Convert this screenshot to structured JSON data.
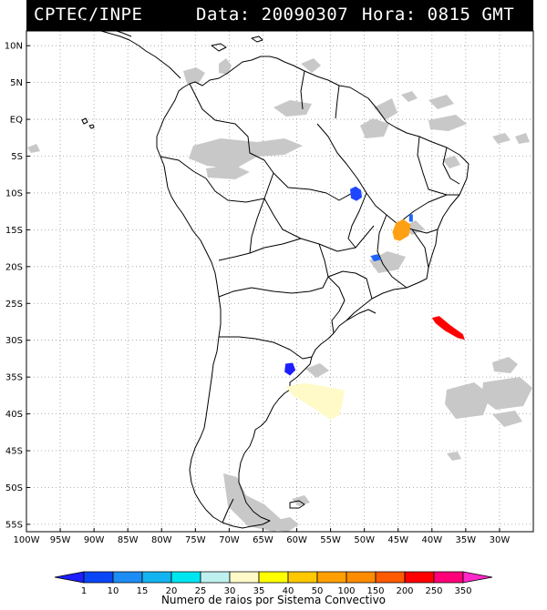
{
  "header": {
    "source": "CPTEC/INPE",
    "date": "Data: 20090307",
    "hour": "Hora: 0815 GMT"
  },
  "map": {
    "lon_range": [
      -100,
      -25
    ],
    "lat_range": [
      -56,
      12
    ],
    "lat_labels": [
      "10N",
      "5N",
      "EQ",
      "5S",
      "10S",
      "15S",
      "20S",
      "25S",
      "30S",
      "35S",
      "40S",
      "45S",
      "50S",
      "55S"
    ],
    "lon_labels": [
      "100W",
      "95W",
      "90W",
      "85W",
      "80W",
      "75W",
      "70W",
      "65W",
      "60W",
      "55W",
      "50W",
      "45W",
      "40W",
      "35W",
      "30W"
    ]
  },
  "legend": {
    "values": [
      "1",
      "10",
      "15",
      "20",
      "25",
      "30",
      "35",
      "40",
      "50",
      "100",
      "150",
      "200",
      "250",
      "350"
    ],
    "colors": [
      "#1e1eff",
      "#0a46f5",
      "#1e8cf5",
      "#14b4f0",
      "#00e6f0",
      "#bef0f0",
      "#fffac8",
      "#ffff00",
      "#ffc800",
      "#ffa000",
      "#ff8c00",
      "#ff5a00",
      "#ff0000",
      "#ff0078",
      "#ff28c8"
    ],
    "caption": "Numero de raios por Sistema Convectivo"
  },
  "systems": [
    {
      "name": "system-central-brazil",
      "lon": -51.3,
      "lat": -10.1,
      "category": "1-10",
      "color": "#1e46ff"
    },
    {
      "name": "system-bahia-small",
      "lon": -43.1,
      "lat": -13.4,
      "category": "10-15",
      "color": "#1e64ff"
    },
    {
      "name": "system-bahia-large",
      "lon": -44.5,
      "lat": -15.3,
      "category": "100-150",
      "color": "#ffa014"
    },
    {
      "name": "system-minas-south",
      "lon": -48.3,
      "lat": -18.8,
      "category": "10-15",
      "color": "#1e64ff"
    },
    {
      "name": "system-atlantic",
      "lon": -37.3,
      "lat": -28.2,
      "category": "250-350",
      "color": "#ff0000"
    },
    {
      "name": "system-argentina-small",
      "lon": -61.0,
      "lat": -33.8,
      "category": "1-10",
      "color": "#1e1eff"
    },
    {
      "name": "system-argentina-large",
      "lon": -57.0,
      "lat": -37.8,
      "category": "35-40",
      "color": "#fffac8"
    }
  ]
}
